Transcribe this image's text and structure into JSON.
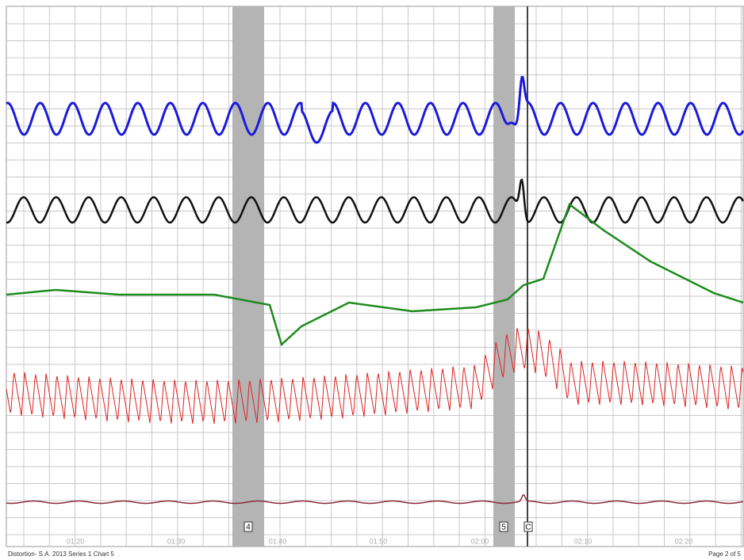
{
  "time_labels": [
    "01:20",
    "01:30",
    "01:40",
    "01:50",
    "02:00",
    "02:10",
    "02:20"
  ],
  "markers": [
    "4",
    "5",
    "C"
  ],
  "footer": {
    "left": "Distortion- S.A. 2013 Series 1 Chart 5",
    "right": "Page 2 of 5"
  }
}
